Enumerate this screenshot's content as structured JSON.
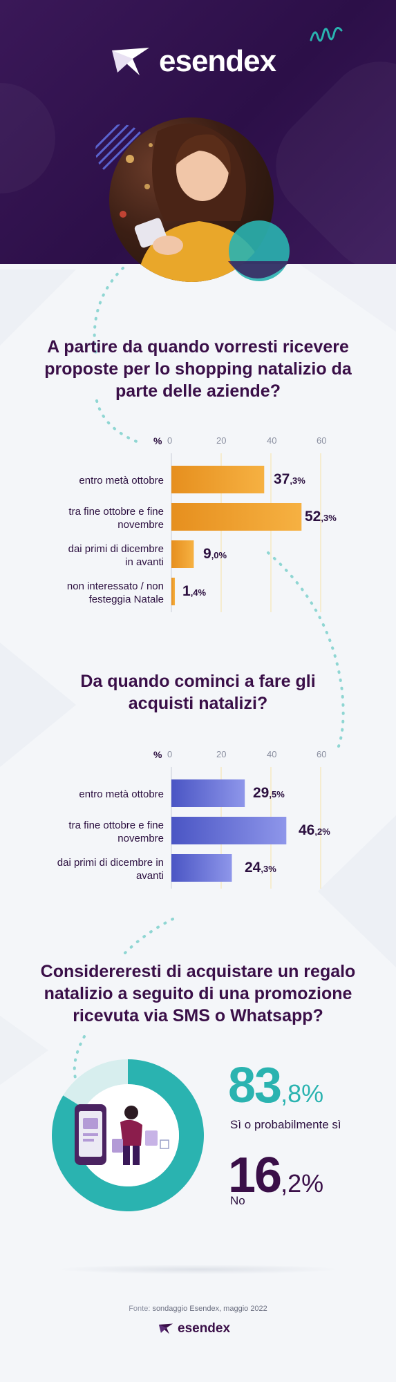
{
  "brand": {
    "name": "esendex"
  },
  "colors": {
    "hero_bg": "#2c0f48",
    "q1_bar": "#f0a131",
    "q2_bar": "#5a63cf",
    "teal": "#2ab3b0",
    "title": "#3a0f48"
  },
  "q1": {
    "title_lines": [
      "A partire da quando vorresti ricevere",
      "proposte per lo shopping natalizio da",
      "parte delle aziende?"
    ],
    "chart_data": {
      "type": "bar",
      "orientation": "horizontal",
      "unit": "%",
      "xlim": [
        0,
        60
      ],
      "ticks": [
        "0",
        "20",
        "40",
        "60"
      ],
      "categories": [
        [
          "entro metà ottobre"
        ],
        [
          "tra fine ottobre e fine",
          "novembre"
        ],
        [
          "dai primi di dicembre",
          "in avanti"
        ],
        [
          "non interessato / non",
          "festeggia Natale"
        ]
      ],
      "values": [
        37.3,
        52.3,
        9.0,
        1.4
      ],
      "labels": [
        {
          "int": "37",
          "dec": ",3%"
        },
        {
          "int": "52",
          "dec": ",3%"
        },
        {
          "int": "9",
          "dec": ",0%"
        },
        {
          "int": "1",
          "dec": ",4%"
        }
      ]
    }
  },
  "q2": {
    "title_lines": [
      "Da quando cominci a fare gli",
      "acquisti natalizi?"
    ],
    "chart_data": {
      "type": "bar",
      "orientation": "horizontal",
      "unit": "%",
      "xlim": [
        0,
        60
      ],
      "ticks": [
        "0",
        "20",
        "40",
        "60"
      ],
      "categories": [
        [
          "entro metà ottobre"
        ],
        [
          "tra fine ottobre e fine",
          "novembre"
        ],
        [
          "dai primi di dicembre in",
          "avanti"
        ]
      ],
      "values": [
        29.5,
        46.2,
        24.3
      ],
      "labels": [
        {
          "int": "29",
          "dec": ",5%"
        },
        {
          "int": "46",
          "dec": ",2%"
        },
        {
          "int": "24",
          "dec": ",3%"
        }
      ]
    }
  },
  "q3": {
    "title_lines": [
      "Considereresti di acquistare un regalo",
      "natalizio a seguito di una promozione",
      "ricevuta via SMS o Whatsapp?"
    ],
    "chart_data": {
      "type": "pie",
      "categories": [
        "Sì o probabilmente sì",
        "No"
      ],
      "values": [
        83.8,
        16.2
      ]
    },
    "stats": [
      {
        "int": "83",
        "dec": ",8%",
        "label": "Sì o probabilmente sì"
      },
      {
        "int": "16",
        "dec": ",2%",
        "label": "No"
      }
    ]
  },
  "source": {
    "prefix": "Fonte:",
    "text": "sondaggio Esendex, maggio 2022"
  }
}
